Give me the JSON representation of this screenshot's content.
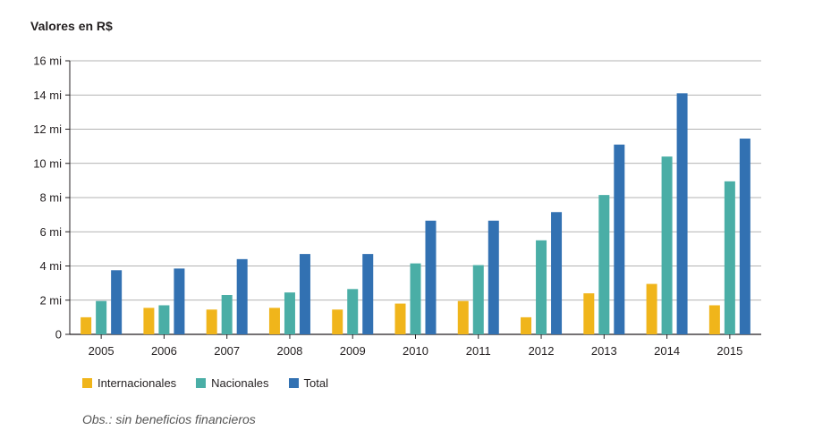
{
  "chart_data": {
    "type": "bar",
    "ylabel": "Valores en R$",
    "categories": [
      "2005",
      "2006",
      "2007",
      "2008",
      "2009",
      "2010",
      "2011",
      "2012",
      "2013",
      "2014",
      "2015"
    ],
    "series": [
      {
        "name": "Internacionales",
        "color": "#f0b51b",
        "values": [
          1.0,
          1.55,
          1.45,
          1.55,
          1.45,
          1.8,
          1.95,
          1.0,
          2.4,
          2.95,
          1.7
        ]
      },
      {
        "name": "Nacionales",
        "color": "#4aaea6",
        "values": [
          1.95,
          1.7,
          2.3,
          2.45,
          2.65,
          4.15,
          4.05,
          5.5,
          8.15,
          10.4,
          8.95
        ]
      },
      {
        "name": "Total",
        "color": "#3271b2",
        "values": [
          3.75,
          3.85,
          4.4,
          4.7,
          4.7,
          6.65,
          6.65,
          7.15,
          11.1,
          14.1,
          11.45
        ]
      }
    ],
    "ylim": [
      0,
      16
    ],
    "yticks": [
      0,
      2,
      4,
      6,
      8,
      10,
      12,
      14,
      16
    ],
    "ytick_labels": [
      "0",
      "2 mi",
      "4 mi",
      "6 mi",
      "8 mi",
      "10 mi",
      "12 mi",
      "14 mi",
      "16 mi"
    ],
    "grid": true,
    "legend_position": "bottom-left"
  },
  "note": "Obs.: sin beneficios financieros"
}
